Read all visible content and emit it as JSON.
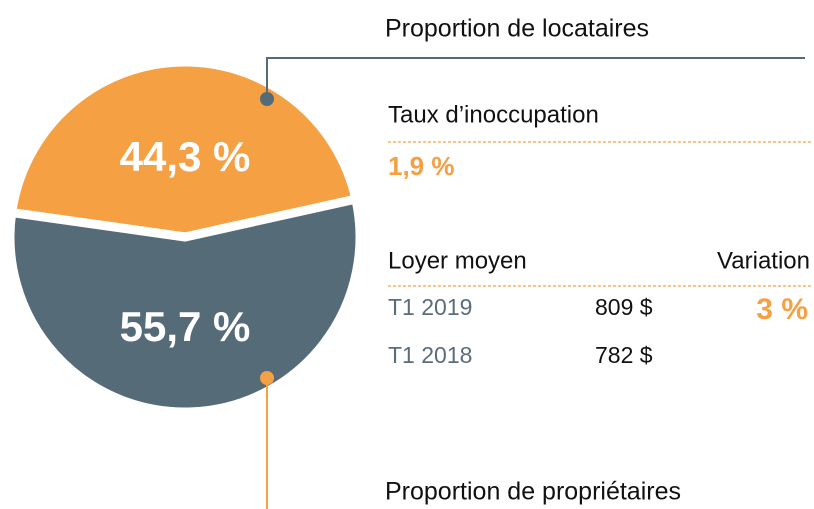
{
  "chart_data": {
    "type": "pie",
    "categories": [
      "Proportion de locataires",
      "Proportion de propriétaires"
    ],
    "values": [
      44.3,
      55.7
    ],
    "value_labels": [
      "44,3 %",
      "55,7 %"
    ],
    "colors": [
      "#f5a043",
      "#566b78"
    ]
  },
  "vacancy": {
    "label": "Taux d’inoccupation",
    "value": "1,9 %"
  },
  "rent": {
    "header": [
      "Loyer moyen",
      "Variation"
    ],
    "rows": [
      [
        "T1 2019",
        "809 $",
        "3 %"
      ],
      [
        "T1 2018",
        "782 $"
      ]
    ]
  }
}
